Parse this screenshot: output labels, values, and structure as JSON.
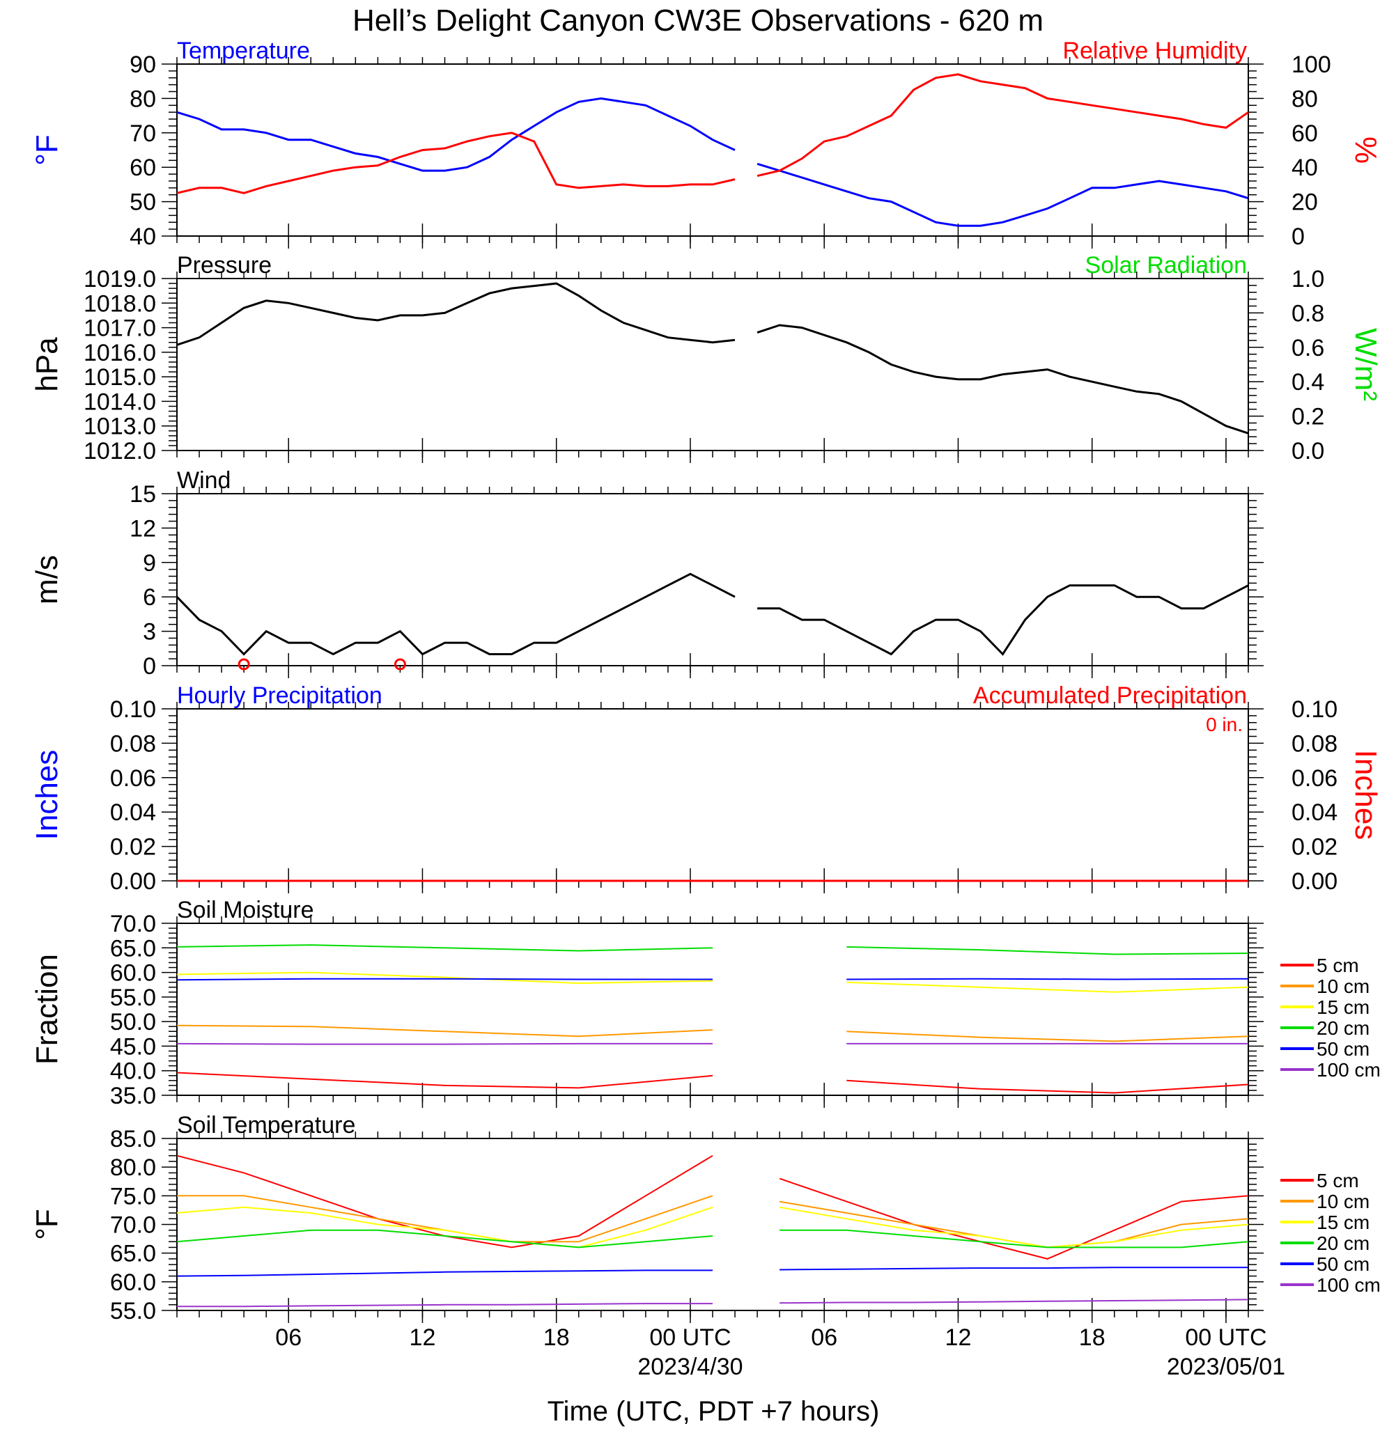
{
  "title": "Hell’s Delight Canyon CW3E Observations - 620 m",
  "x_axis": {
    "label": "Time (UTC, PDT +7 hours)",
    "ticks": [
      {
        "t": 6,
        "label": "06"
      },
      {
        "t": 12,
        "label": "12"
      },
      {
        "t": 18,
        "label": "18"
      },
      {
        "t": 24,
        "label": "00 UTC",
        "date": "2023/4/30"
      },
      {
        "t": 30,
        "label": "06"
      },
      {
        "t": 36,
        "label": "12"
      },
      {
        "t": 42,
        "label": "18"
      },
      {
        "t": 48,
        "label": "00 UTC",
        "date": "2023/05/01"
      }
    ],
    "range_hours": [
      1,
      49
    ]
  },
  "colors": {
    "temp": "#0000ff",
    "rh": "#ff0000",
    "green": "#00dd00",
    "orange": "#ff9900",
    "yellow": "#ffff00",
    "purple": "#9933cc",
    "black": "#000000"
  },
  "chart_data": [
    {
      "type": "line",
      "title_left": "Temperature",
      "title_right": "Relative Humidity",
      "ylabel_left": "°F",
      "ylabel_right": "%",
      "ylim_left": [
        40,
        90
      ],
      "yticks_left": [
        "40",
        "50",
        "60",
        "70",
        "80",
        "90"
      ],
      "ylim_right": [
        0,
        100
      ],
      "yticks_right": [
        "0",
        "20",
        "40",
        "60",
        "80",
        "100"
      ],
      "x": [
        1,
        2,
        3,
        4,
        5,
        6,
        7,
        8,
        9,
        10,
        11,
        12,
        13,
        14,
        15,
        16,
        17,
        18,
        19,
        20,
        21,
        22,
        23,
        24,
        25,
        26,
        27,
        28,
        29,
        30,
        31,
        32,
        33,
        34,
        35,
        36,
        37,
        38,
        39,
        40,
        41,
        42,
        43,
        44,
        45,
        46,
        47,
        48,
        49
      ],
      "series": [
        {
          "name": "Temperature",
          "axis": "left",
          "color": "#0000ff",
          "values": [
            76,
            74,
            71,
            71,
            70,
            68,
            68,
            66,
            64,
            63,
            61,
            59,
            59,
            60,
            63,
            68,
            72,
            76,
            79,
            80,
            79,
            78,
            75,
            72,
            68,
            65,
            61,
            59,
            57,
            55,
            53,
            51,
            50,
            47,
            44,
            43,
            43,
            44,
            46,
            48,
            51,
            54,
            54,
            55,
            56,
            55,
            54,
            53,
            51
          ]
        },
        {
          "name": "Relative Humidity",
          "axis": "right",
          "color": "#ff0000",
          "values": [
            25,
            28,
            28,
            25,
            29,
            32,
            35,
            38,
            40,
            41,
            46,
            50,
            51,
            55,
            58,
            60,
            55,
            30,
            28,
            29,
            30,
            29,
            29,
            30,
            30,
            33,
            35,
            38,
            45,
            55,
            58,
            64,
            70,
            85,
            92,
            94,
            90,
            88,
            86,
            80,
            78,
            76,
            74,
            72,
            70,
            68,
            65,
            63,
            72
          ]
        }
      ]
    },
    {
      "type": "line",
      "title_left": "Pressure",
      "title_right": "Solar Radiation",
      "ylabel_left": "hPa",
      "ylabel_right": "W/m²",
      "ylim_left": [
        1012,
        1019
      ],
      "yticks_left": [
        "1012.0",
        "1013.0",
        "1014.0",
        "1015.0",
        "1016.0",
        "1017.0",
        "1018.0",
        "1019.0"
      ],
      "ylim_right": [
        0,
        1
      ],
      "yticks_right": [
        "0.0",
        "0.2",
        "0.4",
        "0.6",
        "0.8",
        "1.0"
      ],
      "x": [
        1,
        2,
        3,
        4,
        5,
        6,
        7,
        8,
        9,
        10,
        11,
        12,
        13,
        14,
        15,
        16,
        17,
        18,
        19,
        20,
        21,
        22,
        23,
        24,
        25,
        26,
        27,
        28,
        29,
        30,
        31,
        32,
        33,
        34,
        35,
        36,
        37,
        38,
        39,
        40,
        41,
        42,
        43,
        44,
        45,
        46,
        47,
        48,
        49
      ],
      "series": [
        {
          "name": "Pressure",
          "axis": "left",
          "color": "#000000",
          "values": [
            1016.3,
            1016.6,
            1017.2,
            1017.8,
            1018.1,
            1018.0,
            1017.8,
            1017.6,
            1017.4,
            1017.3,
            1017.5,
            1017.5,
            1017.6,
            1018.0,
            1018.4,
            1018.6,
            1018.7,
            1018.8,
            1018.3,
            1017.7,
            1017.2,
            1016.9,
            1016.6,
            1016.5,
            1016.4,
            1016.5,
            1016.8,
            1017.1,
            1017.0,
            1016.7,
            1016.4,
            1016.0,
            1015.5,
            1015.2,
            1015.0,
            1014.9,
            1014.9,
            1015.1,
            1015.2,
            1015.3,
            1015.0,
            1014.8,
            1014.6,
            1014.4,
            1014.3,
            1014.0,
            1013.5,
            1013.0,
            1012.7
          ]
        }
      ]
    },
    {
      "type": "line",
      "title_left": "Wind",
      "ylabel_left": "m/s",
      "ylim_left": [
        0,
        15
      ],
      "yticks_left": [
        "0",
        "3",
        "6",
        "9",
        "12",
        "15"
      ],
      "x": [
        1,
        2,
        3,
        4,
        5,
        6,
        7,
        8,
        9,
        10,
        11,
        12,
        13,
        14,
        15,
        16,
        17,
        18,
        19,
        20,
        21,
        22,
        23,
        24,
        25,
        26,
        27,
        28,
        29,
        30,
        31,
        32,
        33,
        34,
        35,
        36,
        37,
        38,
        39,
        40,
        41,
        42,
        43,
        44,
        45,
        46,
        47,
        48,
        49
      ],
      "series": [
        {
          "name": "Wind speed",
          "axis": "left",
          "color": "#000000",
          "values": [
            6,
            4,
            3,
            1,
            3,
            2,
            2,
            1,
            2,
            2,
            3,
            1,
            2,
            2,
            1,
            1,
            2,
            2,
            3,
            4,
            5,
            6,
            7,
            8,
            7,
            6,
            5,
            5,
            4,
            4,
            3,
            2,
            1,
            3,
            4,
            4,
            3,
            1,
            4,
            6,
            7,
            7,
            7,
            6,
            6,
            5,
            5,
            6,
            7
          ]
        }
      ],
      "barbs": [
        {
          "t": 4,
          "calm": true
        },
        {
          "t": 11,
          "calm": true
        }
      ]
    },
    {
      "type": "line",
      "title_left": "Hourly Precipitation",
      "title_right": "Accumulated Precipitation",
      "annotation": "0 in.",
      "ylabel_left": "Inches",
      "ylabel_right": "Inches",
      "ylim_left": [
        0,
        0.1
      ],
      "yticks_left": [
        "0.00",
        "0.02",
        "0.04",
        "0.06",
        "0.08",
        "0.10"
      ],
      "ylim_right": [
        0,
        0.1
      ],
      "yticks_right": [
        "0.00",
        "0.02",
        "0.04",
        "0.06",
        "0.08",
        "0.10"
      ],
      "x": [
        1,
        49
      ],
      "series": [
        {
          "name": "Hourly Precipitation",
          "axis": "left",
          "color": "#0000ff",
          "values": [
            0,
            0
          ]
        },
        {
          "name": "Accumulated Precipitation",
          "axis": "right",
          "color": "#ff0000",
          "values": [
            0,
            0
          ]
        }
      ]
    },
    {
      "type": "line",
      "title_left": "Soil Moisture",
      "ylabel_left": "Fraction",
      "ylim_left": [
        35,
        70
      ],
      "yticks_left": [
        "35.0",
        "40.0",
        "45.0",
        "50.0",
        "55.0",
        "60.0",
        "65.0",
        "70.0"
      ],
      "legend": [
        "5 cm",
        "10 cm",
        "15 cm",
        "20 cm",
        "50 cm",
        "100 cm"
      ],
      "x": [
        1,
        7,
        13,
        19,
        25,
        31,
        37,
        43,
        49
      ],
      "series": [
        {
          "name": "5 cm",
          "color": "#ff0000",
          "values": [
            39.6,
            38.3,
            37.0,
            36.5,
            39.0,
            38.0,
            36.3,
            35.5,
            37.2
          ]
        },
        {
          "name": "10 cm",
          "color": "#ff9900",
          "values": [
            49.2,
            49.0,
            48.0,
            47.0,
            48.3,
            48.0,
            46.8,
            46.0,
            47.0
          ]
        },
        {
          "name": "15 cm",
          "color": "#ffff00",
          "values": [
            59.6,
            60.0,
            59.0,
            57.8,
            58.3,
            58.0,
            57.0,
            56.0,
            57.0
          ]
        },
        {
          "name": "20 cm",
          "color": "#00dd00",
          "values": [
            65.2,
            65.6,
            65.0,
            64.4,
            65.0,
            65.2,
            64.6,
            63.7,
            63.9
          ]
        },
        {
          "name": "50 cm",
          "color": "#0000ff",
          "values": [
            58.5,
            58.7,
            58.7,
            58.6,
            58.6,
            58.6,
            58.7,
            58.6,
            58.7
          ]
        },
        {
          "name": "100 cm",
          "color": "#9933cc",
          "values": [
            45.5,
            45.4,
            45.4,
            45.5,
            45.5,
            45.5,
            45.5,
            45.5,
            45.5
          ]
        }
      ]
    },
    {
      "type": "line",
      "title_left": "Soil Temperature",
      "ylabel_left": "°F",
      "ylim_left": [
        55,
        85
      ],
      "yticks_left": [
        "55.0",
        "60.0",
        "65.0",
        "70.0",
        "75.0",
        "80.0",
        "85.0"
      ],
      "legend": [
        "5 cm",
        "10 cm",
        "15 cm",
        "20 cm",
        "50 cm",
        "100 cm"
      ],
      "x": [
        1,
        4,
        7,
        10,
        13,
        16,
        19,
        22,
        25,
        28,
        31,
        34,
        37,
        40,
        43,
        46,
        49
      ],
      "series": [
        {
          "name": "5 cm",
          "color": "#ff0000",
          "values": [
            82,
            79,
            75,
            71,
            68,
            66,
            68,
            75,
            82,
            78,
            74,
            70,
            67,
            64,
            69,
            74,
            75
          ]
        },
        {
          "name": "10 cm",
          "color": "#ff9900",
          "values": [
            75,
            75,
            73,
            71,
            69,
            67,
            67,
            71,
            75,
            74,
            72,
            70,
            68,
            66,
            67,
            70,
            71
          ]
        },
        {
          "name": "15 cm",
          "color": "#ffff00",
          "values": [
            72,
            73,
            72,
            70,
            69,
            67,
            66,
            69,
            73,
            73,
            71,
            69,
            68,
            66,
            67,
            69,
            70
          ]
        },
        {
          "name": "20 cm",
          "color": "#00dd00",
          "values": [
            67,
            68,
            69,
            69,
            68,
            67,
            66,
            67,
            68,
            69,
            69,
            68,
            67,
            66,
            66,
            66,
            67
          ]
        },
        {
          "name": "50 cm",
          "color": "#0000ff",
          "values": [
            61,
            61.1,
            61.3,
            61.5,
            61.7,
            61.8,
            61.9,
            62,
            62,
            62.1,
            62.2,
            62.3,
            62.4,
            62.4,
            62.5,
            62.5,
            62.5
          ]
        },
        {
          "name": "100 cm",
          "color": "#9933cc",
          "values": [
            55.7,
            55.7,
            55.8,
            55.9,
            56,
            56,
            56.1,
            56.2,
            56.2,
            56.3,
            56.4,
            56.4,
            56.5,
            56.6,
            56.7,
            56.8,
            56.9
          ]
        }
      ]
    }
  ]
}
